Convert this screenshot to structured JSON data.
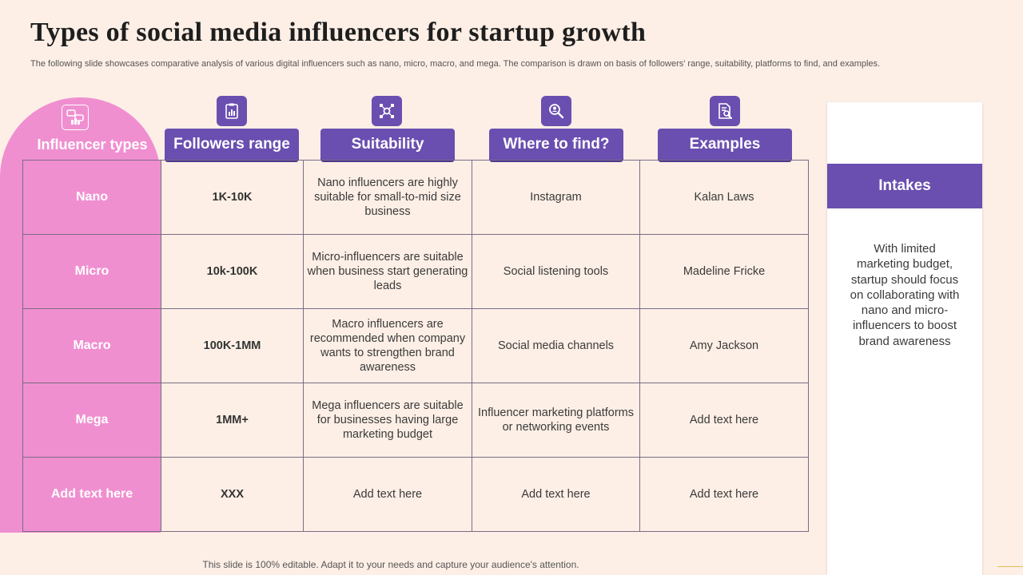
{
  "title": "Types of social media influencers for startup growth",
  "subtitle": "The following slide showcases comparative analysis of various digital influencers such as nano, micro, macro, and mega. The comparison is drawn on basis of followers' range, suitability, platforms to find, and examples.",
  "headers": {
    "types": "Influencer types",
    "followers": "Followers range",
    "suitability": "Suitability",
    "where": "Where to find?",
    "examples": "Examples"
  },
  "rows": [
    {
      "type": "Nano",
      "followers": "1K-10K",
      "suitability": "Nano influencers are highly suitable for small-to-mid size business",
      "where": "Instagram",
      "example": "Kalan Laws"
    },
    {
      "type": "Micro",
      "followers": "10k-100K",
      "suitability": "Micro-influencers are suitable when business start generating leads",
      "where": "Social listening tools",
      "example": "Madeline Fricke"
    },
    {
      "type": "Macro",
      "followers": "100K-1MM",
      "suitability": "Macro influencers are recommended when company wants to strengthen brand awareness",
      "where": "Social media channels",
      "example": "Amy Jackson"
    },
    {
      "type": "Mega",
      "followers": "1MM+",
      "suitability": "Mega influencers are suitable for businesses having large marketing budget",
      "where": "Influencer marketing platforms or networking events",
      "example": "Add text here"
    },
    {
      "type": "Add text here",
      "followers": "XXX",
      "suitability": "Add text here",
      "where": "Add text here",
      "example": "Add text here"
    }
  ],
  "intakes": {
    "title": "Intakes",
    "text": "With limited marketing budget, startup should focus on collaborating with nano and micro-influencers to boost brand awareness"
  },
  "footer": "This slide is 100% editable. Adapt it to your needs and capture your audience's attention.",
  "colors": {
    "accent": "#6a4fb0",
    "pink": "#f08fd0",
    "background": "#fdefe6"
  },
  "icons": {
    "types": "chat-bubbles-icon",
    "followers": "clipboard-chart-icon",
    "suitability": "network-gear-icon",
    "where": "people-search-icon",
    "examples": "document-search-icon"
  }
}
